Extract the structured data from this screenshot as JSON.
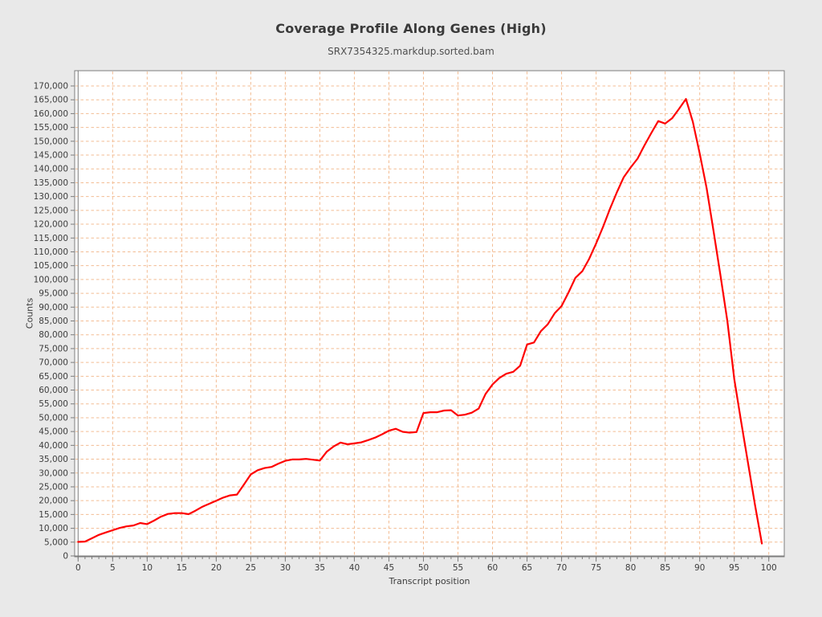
{
  "page": {
    "background_color": "#e9e9e9"
  },
  "chart": {
    "title": "Coverage Profile Along Genes (High)",
    "subtitle": "SRX7354325.markdup.sorted.bam",
    "xlabel": "Transcript position",
    "ylabel": "Counts"
  },
  "style": {
    "page_background": "#e9e9e9",
    "plot_background": "#ffffff",
    "grid_color": "#f3bd94",
    "line_color": "#fe0000",
    "frame_color": "#7d7d7d",
    "tick_label_color": "#3d3d3d",
    "title_color": "#3a3a3a",
    "subtitle_color": "#4f4f4f"
  },
  "chart_data": {
    "type": "line",
    "title": "Coverage Profile Along Genes (High)",
    "subtitle": "SRX7354325.markdup.sorted.bam",
    "xlabel": "Transcript position",
    "ylabel": "Counts",
    "legend": "none",
    "grid": "dashed",
    "x_start": 0,
    "x_step": 1,
    "x_axis": {
      "min": 0,
      "max": 100,
      "major_tick_step": 5,
      "minor_tick_step": 1
    },
    "y_axis": {
      "min": 0,
      "max": 170000,
      "major_tick_step": 5000
    },
    "xlim": [
      -0.5,
      102.3
    ],
    "ylim": [
      0,
      175800
    ],
    "series": [
      {
        "name": "SRX7354325.markdup.sorted.bam",
        "color": "#fe0000",
        "values": [
          5100,
          5200,
          6400,
          7600,
          8500,
          9300,
          10100,
          10700,
          11000,
          11900,
          11500,
          12800,
          14200,
          15200,
          15500,
          15500,
          15100,
          16400,
          17800,
          18900,
          20000,
          21100,
          21900,
          22200,
          25800,
          29500,
          31000,
          31800,
          32200,
          33400,
          34400,
          34900,
          34900,
          35100,
          34800,
          34500,
          37700,
          39600,
          41000,
          40400,
          40700,
          41100,
          41900,
          42800,
          44000,
          45300,
          46000,
          44900,
          44600,
          44800,
          51700,
          52000,
          52000,
          52600,
          52700,
          50800,
          51100,
          51800,
          53300,
          58600,
          62000,
          64400,
          65900,
          66600,
          68800,
          76500,
          77200,
          81300,
          83800,
          87800,
          90400,
          95300,
          100600,
          103000,
          107500,
          113000,
          119000,
          125500,
          131500,
          137000,
          140500,
          143700,
          148500,
          153000,
          157300,
          156400,
          158300,
          161700,
          165300,
          157000,
          145500,
          133000,
          117500,
          101500,
          85000,
          64000,
          48500,
          33500,
          18500,
          4500
        ]
      }
    ]
  }
}
